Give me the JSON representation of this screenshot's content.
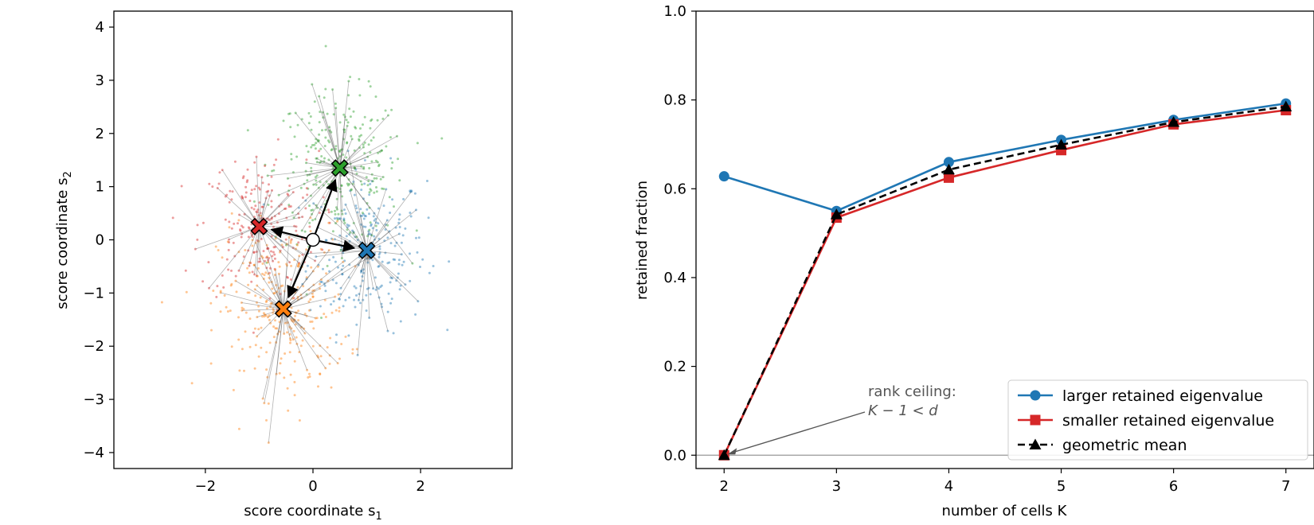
{
  "chart_data": [
    {
      "type": "scatter",
      "xlabel": "score coordinate s",
      "xlabel_sub": "1",
      "ylabel": "score coordinate s",
      "ylabel_sub": "2",
      "xlim": [
        -3.7,
        3.7
      ],
      "ylim": [
        -4.3,
        4.3
      ],
      "xticks": [
        -2,
        0,
        2
      ],
      "yticks": [
        -4,
        -3,
        -2,
        -1,
        0,
        1,
        2,
        3,
        4
      ],
      "origin": [
        0,
        0
      ],
      "clusters": [
        {
          "color": "#1f77b4",
          "center": [
            1.0,
            -0.2
          ],
          "spread": [
            0.55,
            0.75
          ],
          "n": 260
        },
        {
          "color": "#2ca02c",
          "center": [
            0.5,
            1.35
          ],
          "spread": [
            0.6,
            0.7
          ],
          "n": 300
        },
        {
          "color": "#d62728",
          "center": [
            -1.0,
            0.25
          ],
          "spread": [
            0.55,
            0.7
          ],
          "n": 220
        },
        {
          "color": "#ff7f0e",
          "center": [
            -0.55,
            -1.3
          ],
          "spread": [
            0.6,
            0.8
          ],
          "n": 300
        }
      ],
      "centroids": [
        {
          "color": "#2ca02c",
          "x": 0.5,
          "y": 1.35
        },
        {
          "color": "#1f77b4",
          "x": 1.0,
          "y": -0.2
        },
        {
          "color": "#d62728",
          "x": -1.0,
          "y": 0.25
        },
        {
          "color": "#ff7f0e",
          "x": -0.55,
          "y": -1.3
        }
      ]
    },
    {
      "type": "line",
      "xlabel": "number of cells K",
      "ylabel": "retained fraction",
      "xlim": [
        1.75,
        7.25
      ],
      "ylim": [
        -0.03,
        1.0
      ],
      "xticks": [
        2,
        3,
        4,
        5,
        6,
        7
      ],
      "yticks": [
        "0.0",
        "0.2",
        "0.4",
        "0.6",
        "0.8",
        "1.0"
      ],
      "x": [
        2,
        3,
        4,
        5,
        6,
        7
      ],
      "series": [
        {
          "name": "larger retained eigenvalue",
          "color": "#1f77b4",
          "marker": "circle",
          "dash": "",
          "values": [
            0.628,
            0.55,
            0.66,
            0.71,
            0.755,
            0.792
          ]
        },
        {
          "name": "smaller retained eigenvalue",
          "color": "#d62728",
          "marker": "square",
          "dash": "",
          "values": [
            0.0,
            0.535,
            0.625,
            0.687,
            0.745,
            0.777
          ]
        },
        {
          "name": "geometric mean",
          "color": "#000000",
          "marker": "triangle",
          "dash": "dashed",
          "values": [
            0.0,
            0.542,
            0.643,
            0.699,
            0.75,
            0.785
          ]
        }
      ],
      "hline": 0.0,
      "legend": "lower-right",
      "annotation": {
        "line1": "rank ceiling:",
        "line2": "K − 1 < d",
        "target": [
          2,
          0.0
        ]
      }
    }
  ]
}
